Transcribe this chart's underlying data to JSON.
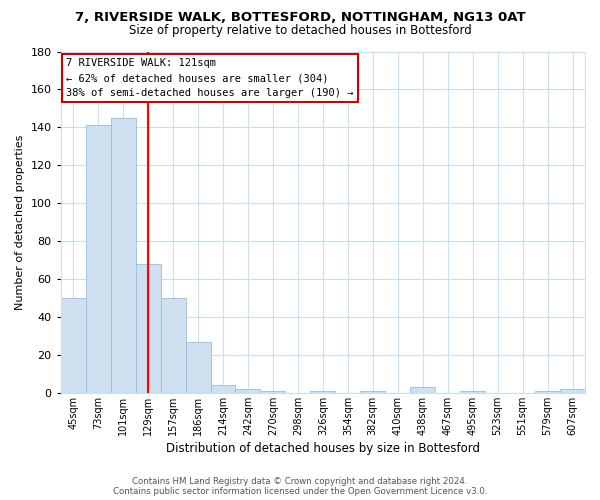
{
  "title": "7, RIVERSIDE WALK, BOTTESFORD, NOTTINGHAM, NG13 0AT",
  "subtitle": "Size of property relative to detached houses in Bottesford",
  "bar_labels": [
    "45sqm",
    "73sqm",
    "101sqm",
    "129sqm",
    "157sqm",
    "186sqm",
    "214sqm",
    "242sqm",
    "270sqm",
    "298sqm",
    "326sqm",
    "354sqm",
    "382sqm",
    "410sqm",
    "438sqm",
    "467sqm",
    "495sqm",
    "523sqm",
    "551sqm",
    "579sqm",
    "607sqm"
  ],
  "bar_values": [
    50,
    141,
    145,
    68,
    50,
    27,
    4,
    2,
    1,
    0,
    1,
    0,
    1,
    0,
    3,
    0,
    1,
    0,
    0,
    1,
    2
  ],
  "bar_color": "#cfe0f0",
  "bar_edge_color": "#9bbcd8",
  "ylim": [
    0,
    180
  ],
  "yticks": [
    0,
    20,
    40,
    60,
    80,
    100,
    120,
    140,
    160,
    180
  ],
  "xlabel": "Distribution of detached houses by size in Bottesford",
  "ylabel": "Number of detached properties",
  "property_line_x": 3.0,
  "property_line_color": "red",
  "annotation_title": "7 RIVERSIDE WALK: 121sqm",
  "annotation_line1": "← 62% of detached houses are smaller (304)",
  "annotation_line2": "38% of semi-detached houses are larger (190) →",
  "annotation_box_color": "#ffffff",
  "annotation_box_edge_color": "#cc0000",
  "footer_line1": "Contains HM Land Registry data © Crown copyright and database right 2024.",
  "footer_line2": "Contains public sector information licensed under the Open Government Licence v3.0.",
  "background_color": "#ffffff",
  "grid_color": "#ccdff0"
}
